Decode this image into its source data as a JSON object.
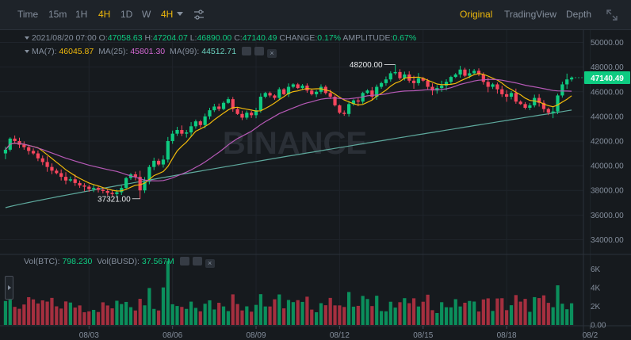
{
  "toolbar": {
    "intervals": [
      {
        "label": "Time",
        "active": false
      },
      {
        "label": "15m",
        "active": false
      },
      {
        "label": "1H",
        "active": false
      },
      {
        "label": "4H",
        "active": true
      },
      {
        "label": "1D",
        "active": false
      },
      {
        "label": "W",
        "active": false
      },
      {
        "label": "4H",
        "active": true
      }
    ],
    "views": [
      {
        "label": "Original",
        "active": true
      },
      {
        "label": "TradingView",
        "active": false
      },
      {
        "label": "Depth",
        "active": false
      }
    ]
  },
  "ohlc": {
    "date": "2021/08/20 07:00",
    "o_label": "O:",
    "o": "47058.63",
    "h_label": "H:",
    "h": "47204.07",
    "l_label": "L:",
    "l": "46890.00",
    "c_label": "C:",
    "c": "47140.49",
    "change_label": "CHANGE:",
    "change": "0.17%",
    "amplitude_label": "AMPLITUDE:",
    "amplitude": "0.67%"
  },
  "ma": {
    "ma7_label": "MA(7):",
    "ma7": "46045.87",
    "ma25_label": "MA(25):",
    "ma25": "45801.30",
    "ma99_label": "MA(99):",
    "ma99": "44512.71"
  },
  "volume_legend": {
    "btc_label": "Vol(BTC):",
    "btc": "798.230",
    "busd_label": "Vol(BUSD):",
    "busd": "37.567M"
  },
  "colors": {
    "up": "#0ecb81",
    "down": "#f6465d",
    "vol_up": "#0b8f5c",
    "vol_down": "#a52f3f",
    "ma7": "#f0b90b",
    "ma25": "#b659b6",
    "ma99": "#5ea99d",
    "accent": "#f0b90b"
  },
  "watermark": "BINANCE",
  "chart_data": {
    "type": "candlestick",
    "price_axis": {
      "ticks": [
        34000,
        36000,
        38000,
        40000,
        42000,
        44000,
        46000,
        48000,
        50000
      ],
      "tick_labels": [
        "34000.00",
        "36000.00",
        "38000.00",
        "40000.00",
        "42000.00",
        "44000.00",
        "46000.00",
        "48000.00",
        "50000.00"
      ],
      "range": [
        33000,
        51000
      ]
    },
    "volume_axis": {
      "ticks": [
        0,
        2000,
        4000,
        6000
      ],
      "tick_labels": [
        "0.00",
        "2K",
        "4K",
        "6K"
      ],
      "range": [
        0,
        7000
      ]
    },
    "x_labels": [
      {
        "label": "08/03",
        "index": 18
      },
      {
        "label": "08/06",
        "index": 36
      },
      {
        "label": "08/09",
        "index": 54
      },
      {
        "label": "08/12",
        "index": 72
      },
      {
        "label": "08/15",
        "index": 90
      },
      {
        "label": "08/18",
        "index": 108
      },
      {
        "label": "08/2",
        "index": 126
      }
    ],
    "last_price": 47140.49,
    "last_price_label": "47140.49",
    "high_marker": {
      "value": 48200,
      "label": "48200.00",
      "index": 84
    },
    "low_marker": {
      "value": 37321,
      "label": "37321.00",
      "index": 29
    },
    "close": [
      41300,
      42200,
      42000,
      41700,
      41500,
      41200,
      41000,
      40600,
      40300,
      39900,
      39600,
      39400,
      39100,
      38800,
      38900,
      38600,
      38400,
      38300,
      38100,
      38200,
      38050,
      37950,
      37800,
      37700,
      37850,
      38200,
      39000,
      39300,
      39100,
      38000,
      38700,
      39900,
      40400,
      40100,
      40500,
      42000,
      42600,
      42900,
      42600,
      42700,
      43200,
      43600,
      43300,
      44000,
      44500,
      44800,
      44600,
      45100,
      45400,
      44600,
      44200,
      43900,
      44300,
      44100,
      44500,
      45600,
      45900,
      45700,
      45500,
      46200,
      45800,
      46400,
      46600,
      46300,
      46500,
      46100,
      45800,
      46000,
      46400,
      45900,
      45600,
      44900,
      44300,
      44200,
      45000,
      45300,
      45200,
      45900,
      46100,
      45600,
      46400,
      46700,
      47000,
      47500,
      47600,
      47100,
      47400,
      46900,
      46700,
      47100,
      46900,
      46400,
      46100,
      46300,
      46500,
      46800,
      47200,
      47400,
      47800,
      47300,
      47500,
      47700,
      47400,
      46800,
      46400,
      46600,
      46200,
      45800,
      45600,
      45900,
      45200,
      45000,
      44700,
      44900,
      45500,
      45100,
      44600,
      44300,
      44400,
      45700,
      46600,
      47000,
      47140
    ]
  }
}
